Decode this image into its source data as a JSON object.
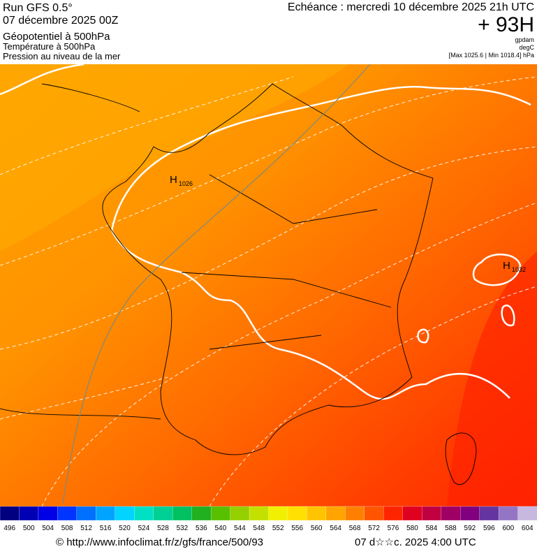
{
  "header": {
    "run": "Run GFS 0.5°",
    "date": "07 décembre 2025 00Z",
    "fields": [
      "Géopotentiel à 500hPa",
      "Température à 500hPa",
      "Pression au niveau de la mer"
    ],
    "echeance": "Echéance : mercredi 10 décembre 2025 21h UTC",
    "offset": "+ 93H",
    "units": [
      "gpdam",
      "degC",
      "[Max 1025.6 | Min 1018.4] hPa"
    ]
  },
  "map": {
    "highs": [
      {
        "letter": "H",
        "value": "1026"
      },
      {
        "letter": "H",
        "value": "1032"
      }
    ]
  },
  "legend": {
    "ticks": [
      496,
      500,
      504,
      508,
      512,
      516,
      520,
      524,
      528,
      532,
      536,
      540,
      544,
      548,
      552,
      556,
      560,
      564,
      568,
      572,
      576,
      580,
      584,
      588,
      592,
      596,
      600,
      604
    ],
    "colors": [
      "#000080",
      "#0000b4",
      "#0000e6",
      "#0034ff",
      "#0070ff",
      "#00a4ff",
      "#00d4ff",
      "#00e0c4",
      "#00d094",
      "#00c060",
      "#20b020",
      "#58c000",
      "#94d000",
      "#c4e000",
      "#f0f000",
      "#ffe000",
      "#ffc400",
      "#ffa400",
      "#ff8000",
      "#ff5400",
      "#ff2400",
      "#e00020",
      "#c00040",
      "#a00064",
      "#800080",
      "#6434a0",
      "#9474c4",
      "#c8b8e0"
    ]
  },
  "footer": {
    "url": "© http://www.infoclimat.fr/z/gfs/france/500/93",
    "time": "07 d☆☆c. 2025  4:00 UTC"
  }
}
